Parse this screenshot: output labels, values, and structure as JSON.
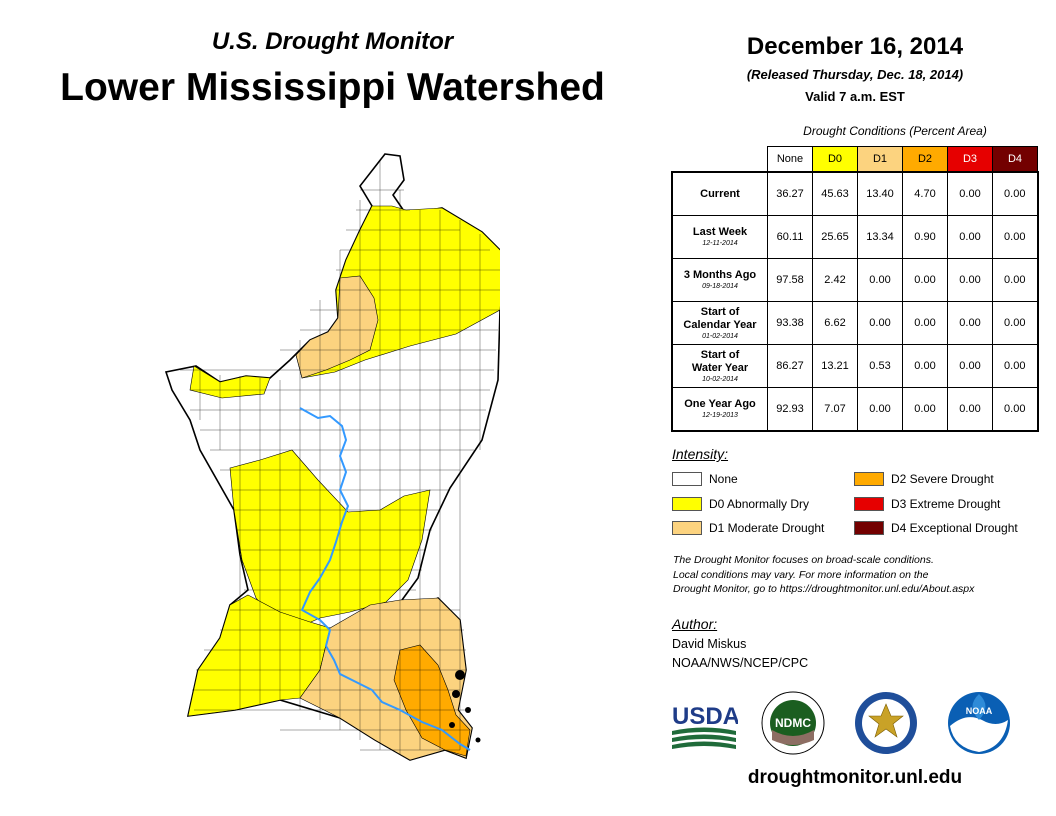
{
  "header": {
    "subtitle": "U.S. Drought Monitor",
    "title": "Lower Mississippi Watershed",
    "date": "December 16, 2014",
    "released": "(Released Thursday, Dec. 18, 2014)",
    "valid": "Valid 7 a.m. EST"
  },
  "conditions": {
    "title": "Drought Conditions (Percent Area)",
    "columns": [
      {
        "label": "None",
        "color": "#ffffff",
        "text_color": "#000000"
      },
      {
        "label": "D0",
        "color": "#ffff00",
        "text_color": "#000000"
      },
      {
        "label": "D1",
        "color": "#fcd37f",
        "text_color": "#000000"
      },
      {
        "label": "D2",
        "color": "#ffaa00",
        "text_color": "#000000"
      },
      {
        "label": "D3",
        "color": "#e60000",
        "text_color": "#ffffff"
      },
      {
        "label": "D4",
        "color": "#730000",
        "text_color": "#ffffff"
      }
    ],
    "rows": [
      {
        "label": [
          "Current"
        ],
        "date": "",
        "values": [
          "36.27",
          "45.63",
          "13.40",
          "4.70",
          "0.00",
          "0.00"
        ]
      },
      {
        "label": [
          "Last Week"
        ],
        "date": "12-11-2014",
        "values": [
          "60.11",
          "25.65",
          "13.34",
          "0.90",
          "0.00",
          "0.00"
        ]
      },
      {
        "label": [
          "3 Months Ago"
        ],
        "date": "09-18-2014",
        "values": [
          "97.58",
          "2.42",
          "0.00",
          "0.00",
          "0.00",
          "0.00"
        ]
      },
      {
        "label": [
          "Start of",
          "Calendar Year"
        ],
        "date": "01-02-2014",
        "values": [
          "93.38",
          "6.62",
          "0.00",
          "0.00",
          "0.00",
          "0.00"
        ]
      },
      {
        "label": [
          "Start of",
          "Water Year"
        ],
        "date": "10-02-2014",
        "values": [
          "86.27",
          "13.21",
          "0.53",
          "0.00",
          "0.00",
          "0.00"
        ]
      },
      {
        "label": [
          "One Year Ago"
        ],
        "date": "12-19-2013",
        "values": [
          "92.93",
          "7.07",
          "0.00",
          "0.00",
          "0.00",
          "0.00"
        ]
      }
    ]
  },
  "legend": {
    "title": "Intensity:",
    "items": [
      {
        "label": "None",
        "color": "#ffffff"
      },
      {
        "label": "D0 Abnormally Dry",
        "color": "#ffff00"
      },
      {
        "label": "D1 Moderate Drought",
        "color": "#fcd37f"
      },
      {
        "label": "D2 Severe Drought",
        "color": "#ffaa00"
      },
      {
        "label": "D3 Extreme Drought",
        "color": "#e60000"
      },
      {
        "label": "D4 Exceptional Drought",
        "color": "#730000"
      }
    ]
  },
  "note": {
    "lines": [
      "The Drought Monitor focuses on broad-scale conditions.",
      "Local conditions may vary. For more information on the",
      "Drought Monitor, go to https://droughtmonitor.unl.edu/About.aspx"
    ]
  },
  "author": {
    "title": "Author:",
    "name": "David Miskus",
    "org": "NOAA/NWS/NCEP/CPC"
  },
  "logos": {
    "usda": "USDA",
    "ndmc": "NDMC",
    "noaa": "NOAA"
  },
  "footer": {
    "site": "droughtmonitor.unl.edu"
  },
  "colors": {
    "none": "#ffffff",
    "d0": "#ffff00",
    "d1": "#fcd37f",
    "d2": "#ffaa00",
    "river": "#3399ff"
  }
}
